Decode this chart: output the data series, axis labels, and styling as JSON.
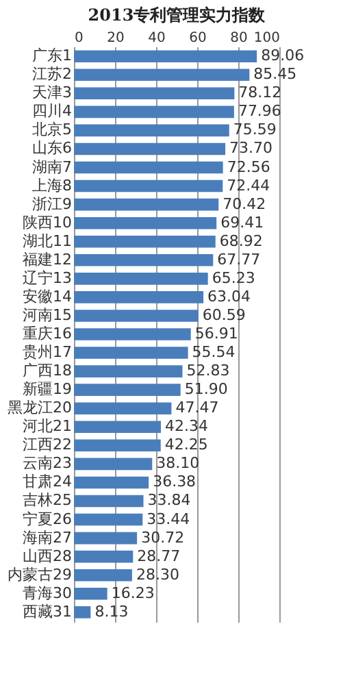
{
  "chart_data": {
    "type": "bar",
    "orientation": "horizontal",
    "title": "2013专利管理实力指数",
    "categories": [
      "广东1",
      "江苏2",
      "天津3",
      "四川4",
      "北京5",
      "山东6",
      "湖南7",
      "上海8",
      "浙江9",
      "陕西10",
      "湖北11",
      "福建12",
      "辽宁13",
      "安徽14",
      "河南15",
      "重庆16",
      "贵州17",
      "广西18",
      "新疆19",
      "黑龙江20",
      "河北21",
      "江西22",
      "云南23",
      "甘肃24",
      "吉林25",
      "宁夏26",
      "海南27",
      "山西28",
      "内蒙古29",
      "青海30",
      "西藏31"
    ],
    "values": [
      89.06,
      85.45,
      78.12,
      77.96,
      75.59,
      73.7,
      72.56,
      72.44,
      70.42,
      69.41,
      68.92,
      67.77,
      65.23,
      63.04,
      60.59,
      56.91,
      55.54,
      52.83,
      51.9,
      47.47,
      42.34,
      42.25,
      38.1,
      36.38,
      33.84,
      33.44,
      30.72,
      28.77,
      28.3,
      16.23,
      8.13
    ],
    "value_labels": [
      "89.06",
      "85.45",
      "78.12",
      "77.96",
      "75.59",
      "73.70",
      "72.56",
      "72.44",
      "70.42",
      "69.41",
      "68.92",
      "67.77",
      "65.23",
      "63.04",
      "60.59",
      "56.91",
      "55.54",
      "52.83",
      "51.90",
      "47.47",
      "42.34",
      "42.25",
      "38.10",
      "36.38",
      "33.84",
      "33.44",
      "30.72",
      "28.77",
      "28.30",
      "16.23",
      "8.13"
    ],
    "color": "#4a7ebb",
    "xlim": [
      0,
      100
    ],
    "xticks": [
      0,
      20,
      40,
      60,
      80,
      100
    ],
    "grid": "x"
  }
}
